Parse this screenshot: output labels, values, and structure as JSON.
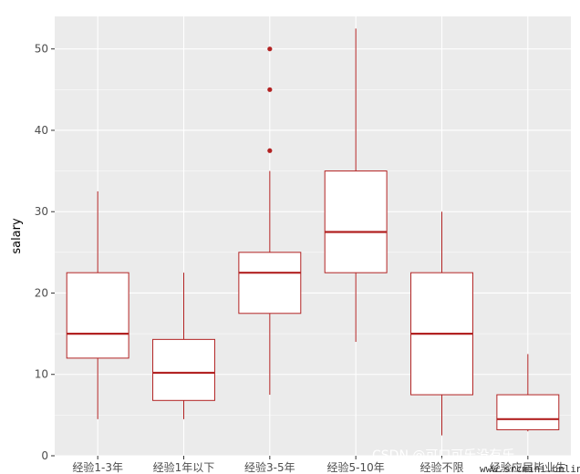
{
  "chart_data": {
    "type": "boxplot",
    "title": "",
    "xlabel": "",
    "ylabel": "salary",
    "ylim": [
      0,
      54
    ],
    "yticks": [
      0,
      10,
      20,
      30,
      40,
      50
    ],
    "grid": true,
    "legend": "none",
    "colors": {
      "panel": "#ebebeb",
      "grid": "#ffffff",
      "box_stroke": "#b22222",
      "box_fill": "#ffffff",
      "outlier": "#b22222"
    },
    "categories": [
      "经验1-3年",
      "经验1年以下",
      "经验3-5年",
      "经验5-10年",
      "经验不限",
      "经验应届毕业生"
    ],
    "boxes": [
      {
        "category": "经验1-3年",
        "min": 4.5,
        "q1": 12,
        "median": 15,
        "q3": 22.5,
        "max": 32.5,
        "outliers": []
      },
      {
        "category": "经验1年以下",
        "min": 4.5,
        "q1": 6.8,
        "median": 10.2,
        "q3": 14.3,
        "max": 22.5,
        "outliers": []
      },
      {
        "category": "经验3-5年",
        "min": 7.5,
        "q1": 17.5,
        "median": 22.5,
        "q3": 25,
        "max": 35,
        "outliers": [
          37.5,
          45,
          50
        ]
      },
      {
        "category": "经验5-10年",
        "min": 14,
        "q1": 22.5,
        "median": 27.5,
        "q3": 35,
        "max": 52.5,
        "outliers": []
      },
      {
        "category": "经验不限",
        "min": 2.5,
        "q1": 7.5,
        "median": 15,
        "q3": 22.5,
        "max": 30,
        "outliers": []
      },
      {
        "category": "经验应届毕业生",
        "min": 3,
        "q1": 3.2,
        "median": 4.5,
        "q3": 7.5,
        "max": 12.5,
        "outliers": []
      }
    ]
  },
  "watermark": {
    "csdn": "CSDN @可口可乐没有乐",
    "site": "www.srcmini.online"
  }
}
